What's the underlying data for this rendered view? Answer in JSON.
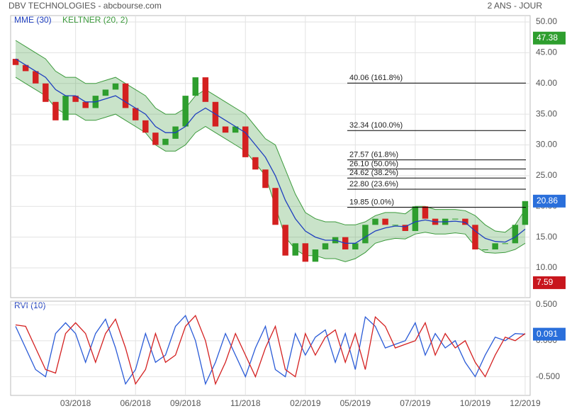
{
  "chart_data": [
    {
      "type": "candlestick",
      "title": "DBV TECHNOLOGIES - abcbourse.com",
      "period": "2 ANS - JOUR",
      "up_color": "#2e9e2e",
      "down_color": "#d42020",
      "open": [
        44,
        43,
        42,
        40,
        37,
        34,
        38,
        37,
        36,
        38,
        39,
        40,
        36,
        34,
        32,
        30,
        31,
        33,
        38,
        41,
        37,
        33,
        32,
        33,
        28,
        26,
        23,
        17,
        12,
        14,
        11,
        13,
        14,
        15,
        13,
        14,
        17,
        18,
        17,
        17,
        16,
        20,
        18,
        17,
        18,
        18,
        17,
        13,
        13,
        14,
        14,
        17
      ],
      "close": [
        43,
        42,
        40,
        37,
        34,
        38,
        37,
        36,
        38,
        39,
        40,
        36,
        34,
        32,
        30,
        31,
        33,
        38,
        41,
        37,
        33,
        32,
        33,
        28,
        26,
        23,
        17,
        12,
        14,
        11,
        13,
        14,
        15,
        13,
        14,
        17,
        18,
        17,
        17,
        16,
        20,
        18,
        17,
        18,
        18,
        17,
        13,
        13,
        14,
        14,
        17,
        20.86
      ],
      "series": [
        {
          "name": "MME (30)",
          "color": "#1f3fbf",
          "values": [
            44,
            43,
            42,
            41,
            39,
            38,
            38,
            37,
            37,
            37.5,
            38,
            37,
            36,
            35,
            33,
            32,
            32,
            33,
            35,
            36,
            35,
            34,
            33,
            32,
            30,
            28,
            25,
            21,
            18,
            16,
            15,
            14.5,
            14.5,
            14,
            14,
            15,
            16,
            16.5,
            16.8,
            16.7,
            17.5,
            17.8,
            17.5,
            17.5,
            17.6,
            17.4,
            16,
            14.8,
            14.3,
            14.2,
            15,
            16.3
          ]
        },
        {
          "name": "KELTNER (20, 2)",
          "color": "#3c9a3c",
          "upper": [
            47,
            46,
            45,
            44,
            42,
            41,
            41,
            40,
            40,
            40.5,
            41,
            40,
            39,
            38,
            36,
            35,
            35,
            36,
            38,
            39,
            38,
            37,
            36,
            35,
            33,
            31,
            30,
            26,
            22,
            19,
            18,
            17.5,
            17.5,
            17,
            17,
            17.5,
            18.5,
            19,
            19,
            18.8,
            20,
            20,
            19.5,
            19.5,
            19.5,
            19.3,
            18.5,
            17,
            16,
            15.8,
            17,
            19.5
          ],
          "lower": [
            41,
            40,
            39,
            38,
            36,
            35,
            35,
            34,
            34,
            34.5,
            35,
            34,
            33,
            32,
            30,
            29,
            29,
            30,
            32,
            33,
            32,
            31,
            30,
            29,
            27,
            25,
            20,
            15,
            13,
            12,
            12,
            11.5,
            11.5,
            11,
            11.5,
            12.5,
            14,
            14.5,
            14.8,
            14.7,
            15.5,
            15.8,
            15.5,
            15.5,
            15.7,
            15.5,
            13.5,
            12.5,
            12.4,
            12.5,
            13,
            14
          ]
        }
      ],
      "fib_levels": [
        {
          "value": 40.06,
          "label": "40.06 (161.8%)"
        },
        {
          "value": 32.34,
          "label": "32.34 (100.0%)"
        },
        {
          "value": 27.57,
          "label": "27.57 (61.8%)"
        },
        {
          "value": 26.1,
          "label": "26.10 (50.0%)"
        },
        {
          "value": 24.62,
          "label": "24.62 (38.2%)"
        },
        {
          "value": 22.8,
          "label": "22.80 (23.6%)"
        },
        {
          "value": 19.85,
          "label": "19.85 (0.0%)"
        }
      ],
      "high": 47.38,
      "low": 7.59,
      "ylim": [
        5.16,
        51.04
      ],
      "yticks": [
        {
          "value": 10,
          "label": "10.00"
        },
        {
          "value": 15,
          "label": "15.00"
        },
        {
          "value": 20,
          "label": "20.00"
        },
        {
          "value": 25,
          "label": "25.00"
        },
        {
          "value": 30,
          "label": "30.00"
        },
        {
          "value": 35,
          "label": "35.00"
        },
        {
          "value": 40,
          "label": "40.00"
        },
        {
          "value": 45,
          "label": "45.00"
        },
        {
          "value": 50,
          "label": "50.00"
        }
      ]
    },
    {
      "type": "line",
      "title": "RVI (10)",
      "categories": [
        null,
        null,
        null,
        null,
        null,
        null,
        "03/2018",
        null,
        null,
        null,
        null,
        null,
        "06/2018",
        null,
        null,
        null,
        null,
        "09/2018",
        null,
        null,
        null,
        null,
        null,
        "11/2018",
        null,
        null,
        null,
        null,
        null,
        "02/2019",
        null,
        null,
        null,
        null,
        "05/2019",
        null,
        null,
        null,
        null,
        null,
        "07/2019",
        null,
        null,
        null,
        null,
        null,
        "10/2019",
        null,
        null,
        null,
        null,
        "12/2019"
      ],
      "series": [
        {
          "color": "#2a5bd7",
          "values": [
            0.2,
            -0.1,
            -0.4,
            -0.5,
            0.1,
            0.25,
            0.1,
            -0.3,
            0.1,
            0.3,
            -0.1,
            -0.6,
            -0.4,
            0.1,
            -0.3,
            -0.2,
            0.2,
            0.35,
            0.0,
            -0.6,
            -0.3,
            0.1,
            -0.2,
            -0.5,
            -0.1,
            0.2,
            -0.4,
            -0.5,
            0.1,
            -0.2,
            0.05,
            0.15,
            -0.3,
            0.1,
            -0.4,
            0.33,
            0.2,
            -0.1,
            -0.05,
            0.0,
            0.25,
            -0.2,
            0.1,
            -0.1,
            0.0,
            -0.3,
            -0.5,
            -0.2,
            0.05,
            0.0,
            0.1,
            0.091
          ]
        },
        {
          "color": "#d42020",
          "values": [
            0.22,
            0.2,
            -0.1,
            -0.4,
            -0.45,
            0.1,
            0.25,
            0.1,
            -0.3,
            0.1,
            0.3,
            -0.1,
            -0.6,
            -0.4,
            0.1,
            -0.3,
            -0.2,
            0.2,
            0.35,
            0.0,
            -0.6,
            -0.3,
            0.1,
            -0.2,
            -0.5,
            -0.1,
            0.2,
            -0.4,
            -0.5,
            0.1,
            -0.2,
            0.05,
            0.15,
            -0.3,
            0.1,
            -0.4,
            0.33,
            0.2,
            -0.1,
            -0.05,
            0.0,
            0.25,
            -0.2,
            0.1,
            -0.1,
            0.0,
            -0.3,
            -0.5,
            -0.2,
            0.05,
            0.0,
            0.1
          ]
        }
      ],
      "ylim": [
        -0.76,
        0.55
      ],
      "yticks": [
        {
          "value": -0.5,
          "label": "-0.500"
        },
        {
          "value": 0,
          "label": "0.000"
        },
        {
          "value": 0.5,
          "label": "0.500"
        }
      ]
    }
  ]
}
